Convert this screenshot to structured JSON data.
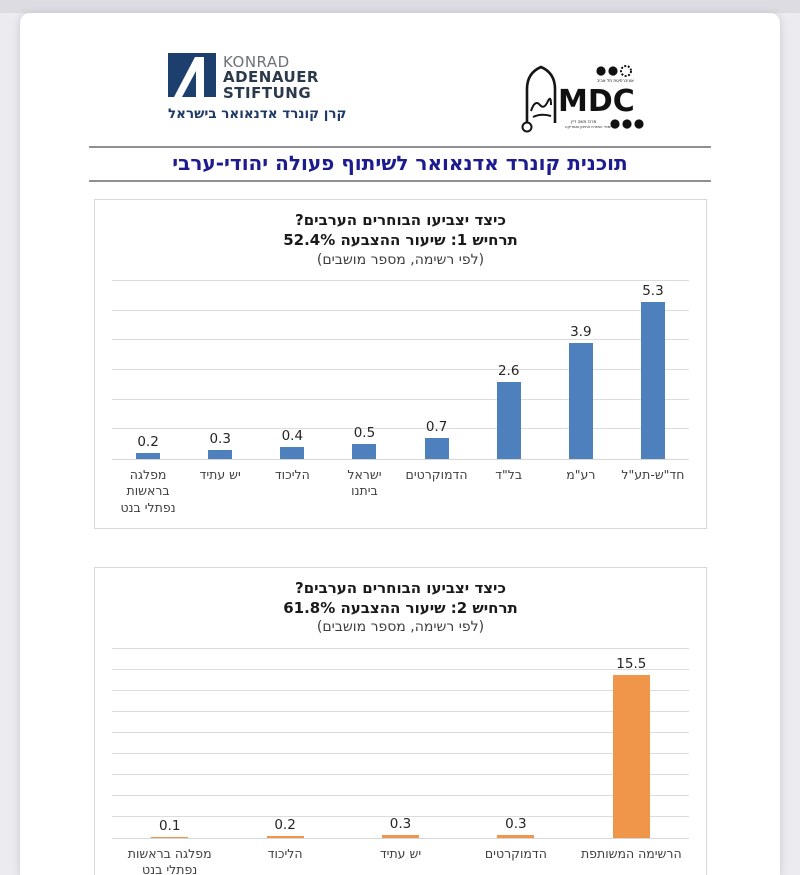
{
  "header": {
    "kas_logo": {
      "name": "Konrad Adenauer Stiftung logo",
      "word1": "KONRAD",
      "word2": "ADENAUER",
      "word3": "STIFTUNG",
      "hebrew_caption": "קרן קונרד אדנאואר בישראל",
      "mark_color": "#1d3f6e"
    },
    "mdc_logo": {
      "name": "Moshe Dayan Center (MDC) logo",
      "acronym": "MDC",
      "tiny_top_caption": "אוניברסיטת תל אביב",
      "tiny_bottom_caption": "מרכז משה דיין ללימודי המזרח התיכון ואפריקה",
      "color": "#111111"
    }
  },
  "page_title": "תוכנית קונרד אדנאואר לשיתוף פעולה יהודי-ערבי",
  "title_color": "#1c1c8f",
  "chart_data": [
    {
      "type": "bar",
      "title_line1": "כיצד יצביעו הבוחרים הערבים?",
      "title_line2": "תרחיש 1: שיעור ההצבעה 52.4%",
      "title_line3": "(לפי רשימה, מספר מושבים)",
      "categories": [
        "חד\"ש-תע\"ל",
        "רע\"מ",
        "בל\"ד",
        "הדמוקרטים",
        "ישראל ביתנו",
        "הליכוד",
        "יש עתיד",
        "מפלגה בראשות נפתלי בנט"
      ],
      "values": [
        5.3,
        3.9,
        2.6,
        0.7,
        0.5,
        0.4,
        0.3,
        0.2
      ],
      "bar_color": "#4e80bd",
      "ylim": [
        0,
        6
      ],
      "grid_step": 1,
      "grid": true,
      "legend": false,
      "direction": "rtl",
      "xlabel": "",
      "ylabel": ""
    },
    {
      "type": "bar",
      "title_line1": "כיצד יצביעו הבוחרים הערבים?",
      "title_line2": "תרחיש 2: שיעור ההצבעה 61.8%",
      "title_line3": "(לפי רשימה, מספר מושבים)",
      "categories": [
        "הרשימה המשותפת",
        "הדמוקרטים",
        "יש עתיד",
        "הליכוד",
        "מפלגה בראשות נפתלי בנט"
      ],
      "values": [
        15.5,
        0.3,
        0.3,
        0.2,
        0.1
      ],
      "bar_color": "#f0964b",
      "ylim": [
        0,
        18
      ],
      "grid_step": 2,
      "grid": true,
      "legend": false,
      "direction": "rtl",
      "xlabel": "",
      "ylabel": ""
    }
  ]
}
